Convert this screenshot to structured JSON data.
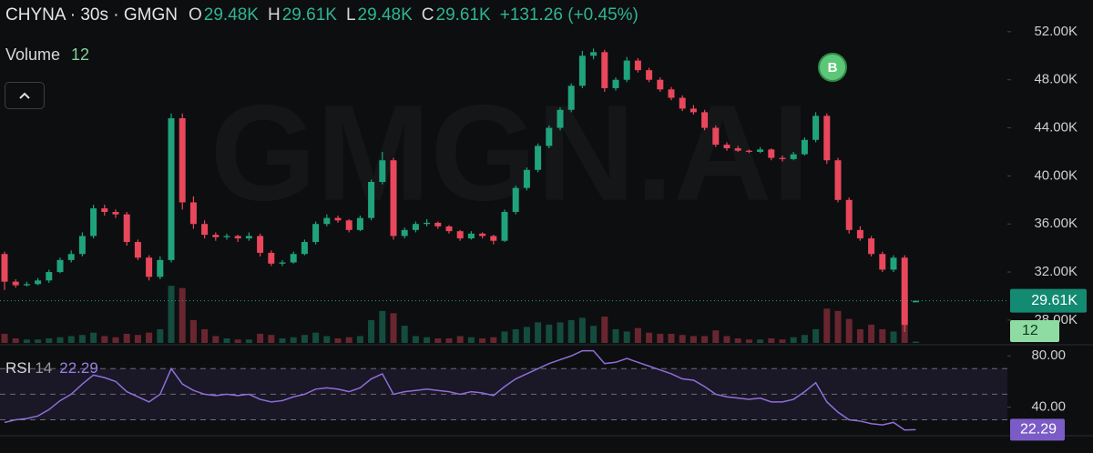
{
  "chart_data": {
    "type": "candlestick",
    "title": "CHYNA · 30s · GMGN",
    "header": [
      {
        "key": "O",
        "label": "29.48K"
      },
      {
        "key": "H",
        "label": "29.61K"
      },
      {
        "key": "L",
        "label": "29.48K"
      },
      {
        "key": "C",
        "label": "29.61K"
      }
    ],
    "change": "+131.26 (+0.45%)",
    "watermark": "GMGN.AI",
    "marker": "B",
    "colors": {
      "up": "#1fa37c",
      "down": "#e9475b"
    },
    "ylim": [
      26100,
      54640
    ],
    "yticks": [
      {
        "value": 52000,
        "label": "52.00K"
      },
      {
        "value": 48000,
        "label": "48.00K"
      },
      {
        "value": 44000,
        "label": "44.00K"
      },
      {
        "value": 40000,
        "label": "40.00K"
      },
      {
        "value": 36000,
        "label": "36.00K"
      },
      {
        "value": 32000,
        "label": "32.00K"
      },
      {
        "value": 28000,
        "label": "28.00K"
      }
    ],
    "last_price": {
      "value": 29610,
      "label": "29.61K"
    },
    "ohlc": [
      [
        33500,
        33700,
        30500,
        31200
      ],
      [
        31200,
        31400,
        30700,
        30900
      ],
      [
        30900,
        31200,
        30800,
        31000
      ],
      [
        31000,
        31500,
        30900,
        31300
      ],
      [
        31300,
        32200,
        31100,
        32000
      ],
      [
        32000,
        33200,
        31900,
        33000
      ],
      [
        33000,
        33800,
        32800,
        33500
      ],
      [
        33500,
        35300,
        33300,
        35000
      ],
      [
        35000,
        37600,
        34800,
        37300
      ],
      [
        37300,
        37600,
        36700,
        37000
      ],
      [
        37000,
        37200,
        36500,
        36800
      ],
      [
        36800,
        37000,
        34200,
        34500
      ],
      [
        34500,
        34700,
        33000,
        33200
      ],
      [
        33200,
        33400,
        31300,
        31600
      ],
      [
        31600,
        33300,
        31400,
        33000
      ],
      [
        33000,
        45200,
        32800,
        44800
      ],
      [
        44800,
        45200,
        37200,
        37800
      ],
      [
        37800,
        38300,
        35600,
        36000
      ],
      [
        36000,
        36300,
        34800,
        35100
      ],
      [
        35100,
        35300,
        34600,
        34900
      ],
      [
        34900,
        35200,
        34700,
        35000
      ],
      [
        35000,
        35100,
        34500,
        34800
      ],
      [
        34800,
        35300,
        34600,
        35000
      ],
      [
        35000,
        35200,
        33300,
        33600
      ],
      [
        33600,
        33800,
        32500,
        32700
      ],
      [
        32700,
        33000,
        32500,
        32800
      ],
      [
        32800,
        33700,
        32700,
        33500
      ],
      [
        33500,
        34700,
        33400,
        34500
      ],
      [
        34500,
        36200,
        34300,
        36000
      ],
      [
        36000,
        36800,
        35800,
        36500
      ],
      [
        36500,
        36700,
        36100,
        36300
      ],
      [
        36300,
        36400,
        35300,
        35500
      ],
      [
        35500,
        36700,
        35400,
        36500
      ],
      [
        36500,
        39700,
        36300,
        39500
      ],
      [
        39500,
        42000,
        39300,
        41300
      ],
      [
        41300,
        41500,
        34700,
        35000
      ],
      [
        35000,
        35700,
        34800,
        35500
      ],
      [
        35500,
        36200,
        35300,
        36000
      ],
      [
        36000,
        36400,
        35800,
        36100
      ],
      [
        36100,
        36200,
        35600,
        35800
      ],
      [
        35800,
        35900,
        35200,
        35400
      ],
      [
        35400,
        35500,
        34600,
        34800
      ],
      [
        34800,
        35400,
        34700,
        35200
      ],
      [
        35200,
        35300,
        34800,
        35000
      ],
      [
        35000,
        35100,
        34300,
        34600
      ],
      [
        34600,
        37200,
        34500,
        37000
      ],
      [
        37000,
        39200,
        36800,
        39000
      ],
      [
        39000,
        40700,
        38800,
        40500
      ],
      [
        40500,
        42700,
        40300,
        42500
      ],
      [
        42500,
        44200,
        42300,
        44000
      ],
      [
        44000,
        45700,
        43800,
        45500
      ],
      [
        45500,
        47700,
        45300,
        47500
      ],
      [
        47500,
        50400,
        47300,
        50000
      ],
      [
        50000,
        50600,
        49700,
        50300
      ],
      [
        50300,
        50500,
        47000,
        47300
      ],
      [
        47300,
        48200,
        47100,
        48000
      ],
      [
        48000,
        49900,
        47800,
        49600
      ],
      [
        49600,
        49800,
        48600,
        48800
      ],
      [
        48800,
        49000,
        47800,
        48000
      ],
      [
        48000,
        48200,
        47000,
        47200
      ],
      [
        47200,
        47400,
        46300,
        46500
      ],
      [
        46500,
        46700,
        45400,
        45600
      ],
      [
        45600,
        45900,
        45100,
        45300
      ],
      [
        45300,
        45500,
        43800,
        44000
      ],
      [
        44000,
        44200,
        42400,
        42600
      ],
      [
        42600,
        42800,
        42100,
        42300
      ],
      [
        42300,
        42500,
        42000,
        42100
      ],
      [
        42100,
        42200,
        41900,
        42000
      ],
      [
        42000,
        42400,
        41900,
        42200
      ],
      [
        42200,
        42300,
        41300,
        41500
      ],
      [
        41500,
        41700,
        41200,
        41400
      ],
      [
        41400,
        42000,
        41300,
        41800
      ],
      [
        41800,
        43200,
        41700,
        43000
      ],
      [
        43000,
        45300,
        42800,
        45000
      ],
      [
        45000,
        45200,
        41000,
        41300
      ],
      [
        41300,
        41500,
        37800,
        38000
      ],
      [
        38000,
        38200,
        35200,
        35500
      ],
      [
        35500,
        35800,
        34600,
        34800
      ],
      [
        34800,
        35000,
        33300,
        33500
      ],
      [
        33500,
        33700,
        32000,
        32200
      ],
      [
        32200,
        33400,
        32000,
        33200
      ],
      [
        33200,
        33400,
        27000,
        27600
      ],
      [
        29480,
        29610,
        29480,
        29610
      ]
    ],
    "volume": {
      "name": "Volume",
      "ylim": [
        0,
        3000
      ],
      "values": [
        80,
        40,
        30,
        30,
        40,
        50,
        60,
        70,
        90,
        60,
        50,
        80,
        70,
        90,
        120,
        500,
        480,
        200,
        120,
        60,
        40,
        30,
        30,
        80,
        70,
        40,
        50,
        70,
        90,
        60,
        40,
        50,
        60,
        200,
        280,
        260,
        150,
        60,
        50,
        40,
        40,
        60,
        50,
        40,
        50,
        100,
        120,
        140,
        180,
        160,
        180,
        200,
        220,
        150,
        230,
        120,
        100,
        130,
        90,
        80,
        80,
        70,
        60,
        60,
        110,
        60,
        40,
        30,
        30,
        40,
        30,
        50,
        70,
        120,
        300,
        280,
        210,
        120,
        160,
        120,
        100,
        420,
        12
      ]
    },
    "rsi": {
      "name": "RSI",
      "period": 14,
      "color": "#8e6fd8",
      "ylim": [
        19,
        88
      ],
      "yticks": [
        {
          "value": 80,
          "label": "80.00"
        },
        {
          "value": 40,
          "label": "40.00"
        }
      ],
      "levels": [
        70,
        50,
        30
      ],
      "values": [
        28,
        30,
        31,
        33,
        38,
        45,
        50,
        58,
        65,
        63,
        60,
        52,
        48,
        44,
        50,
        70,
        58,
        53,
        50,
        49,
        50,
        49,
        50,
        46,
        44,
        45,
        48,
        50,
        54,
        55,
        54,
        52,
        55,
        62,
        66,
        50,
        52,
        53,
        54,
        53,
        52,
        50,
        52,
        51,
        49,
        56,
        62,
        66,
        70,
        74,
        77,
        80,
        84,
        84,
        74,
        75,
        78,
        75,
        72,
        69,
        66,
        62,
        61,
        56,
        50,
        48,
        47,
        46,
        47,
        44,
        44,
        46,
        52,
        59,
        44,
        36,
        30,
        29,
        27,
        26,
        28,
        22,
        22.29
      ]
    }
  }
}
